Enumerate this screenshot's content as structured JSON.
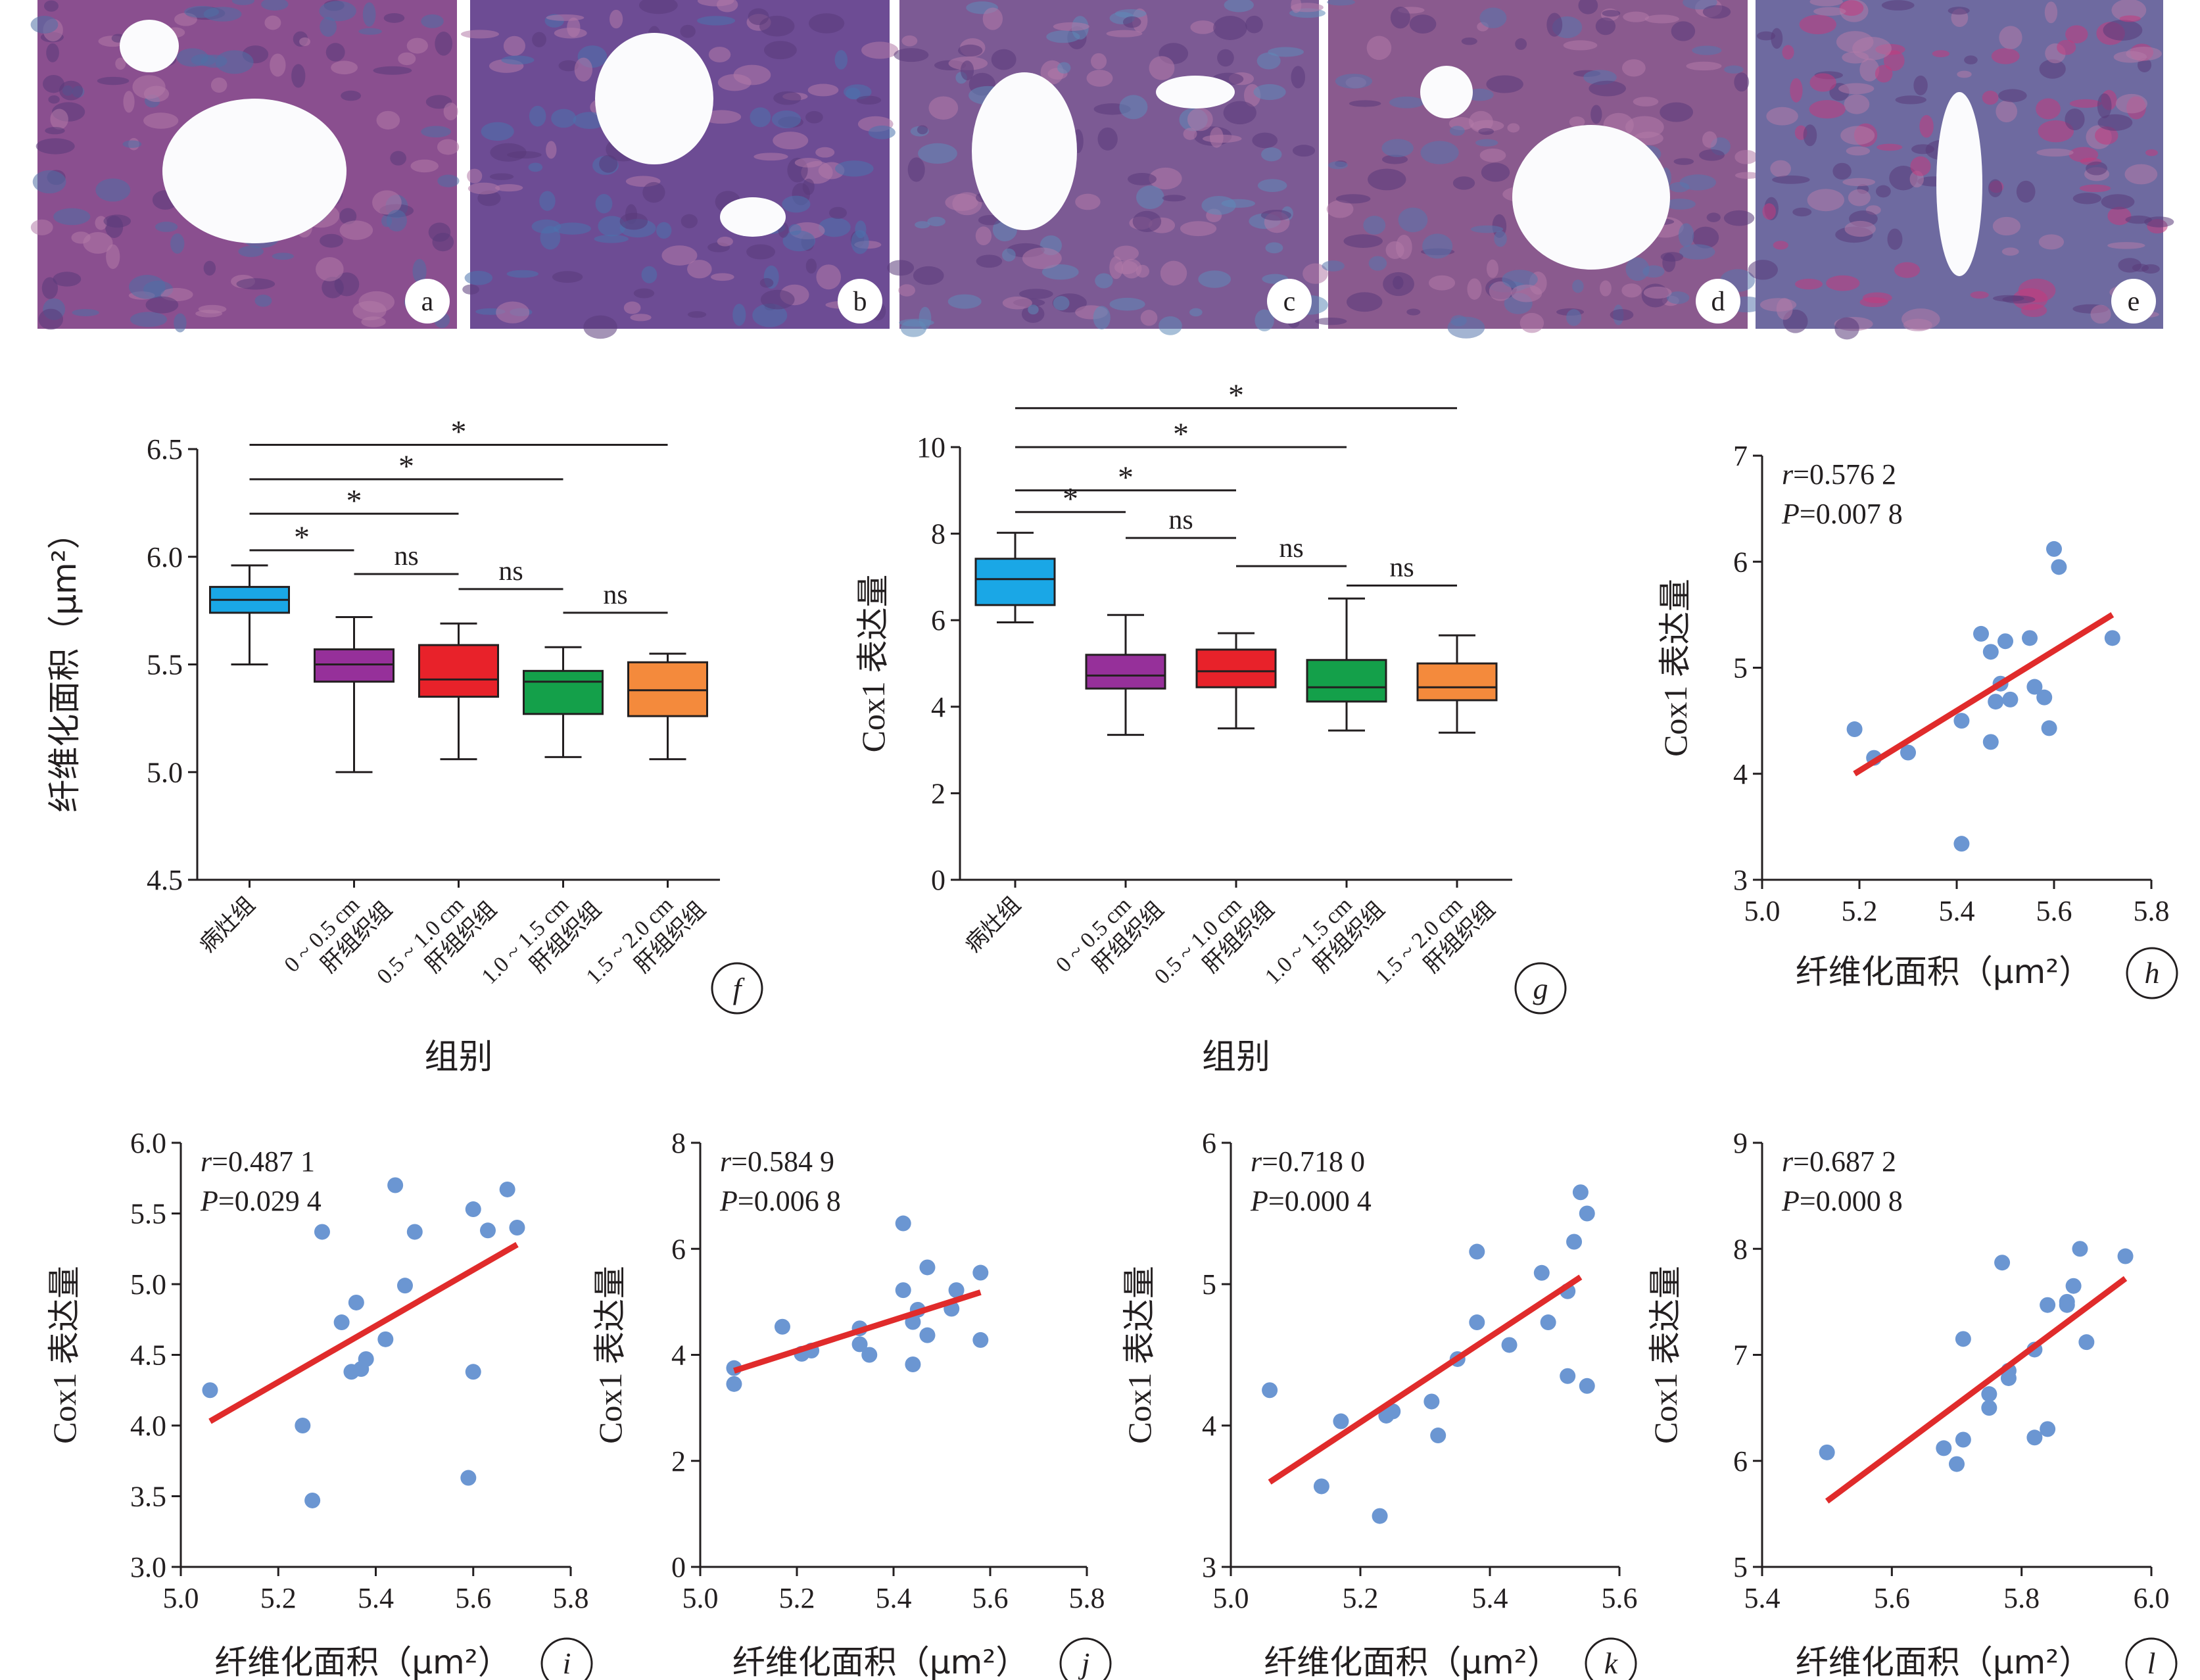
{
  "photos": [
    {
      "label": "a",
      "dominant": "#8a4f8f",
      "accent": "#4f6fa6"
    },
    {
      "label": "b",
      "dominant": "#6d4c94",
      "accent": "#4b73ad"
    },
    {
      "label": "c",
      "dominant": "#7c5a94",
      "accent": "#5e8ab8"
    },
    {
      "label": "d",
      "dominant": "#8a5a8e",
      "accent": "#5877ad"
    },
    {
      "label": "e",
      "dominant": "#6e6aa0",
      "accent": "#c23a7e"
    }
  ],
  "box_colors": [
    "#1aa7e6",
    "#96309a",
    "#e8222a",
    "#14a04a",
    "#f48a3c"
  ],
  "scatter_color": "#6b96d2",
  "fit_color": "#e02b2b",
  "chart_data": [
    {
      "panel": "f",
      "type": "box",
      "ylabel": "纤维化面积（μm²）",
      "xlabel": "组别",
      "ylim": [
        4.5,
        6.5
      ],
      "yticks": [
        "4.5",
        "5.0",
        "5.5",
        "6.0",
        "6.5"
      ],
      "groups": [
        {
          "line1": "病灶组",
          "line2": "",
          "min": 5.5,
          "q1": 5.74,
          "median": 5.8,
          "q3": 5.86,
          "max": 5.96
        },
        {
          "line1": "0 ~ 0.5 cm",
          "line2": "肝组织组",
          "min": 5.0,
          "q1": 5.42,
          "median": 5.5,
          "q3": 5.57,
          "max": 5.72
        },
        {
          "line1": "0.5 ~ 1.0 cm",
          "line2": "肝组织组",
          "min": 5.06,
          "q1": 5.35,
          "median": 5.43,
          "q3": 5.59,
          "max": 5.69
        },
        {
          "line1": "1.0 ~ 1.5 cm",
          "line2": "肝组织组",
          "min": 5.07,
          "q1": 5.27,
          "median": 5.42,
          "q3": 5.47,
          "max": 5.58
        },
        {
          "line1": "1.5 ~ 2.0 cm",
          "line2": "肝组织组",
          "min": 5.06,
          "q1": 5.26,
          "median": 5.38,
          "q3": 5.51,
          "max": 5.55
        }
      ],
      "annotations": [
        {
          "from": 0,
          "to": 1,
          "text": "*",
          "level": 6.03
        },
        {
          "from": 0,
          "to": 2,
          "text": "*",
          "level": 6.2
        },
        {
          "from": 0,
          "to": 3,
          "text": "*",
          "level": 6.36
        },
        {
          "from": 0,
          "to": 4,
          "text": "*",
          "level": 6.52
        },
        {
          "from": 1,
          "to": 2,
          "text": "ns",
          "level": 5.92
        },
        {
          "from": 2,
          "to": 3,
          "text": "ns",
          "level": 5.85
        },
        {
          "from": 3,
          "to": 4,
          "text": "ns",
          "level": 5.74
        }
      ]
    },
    {
      "panel": "g",
      "type": "box",
      "ylabel": "Cox1 表达量",
      "xlabel": "组别",
      "ylim": [
        0,
        10
      ],
      "yticks": [
        "0",
        "2",
        "4",
        "6",
        "8",
        "10"
      ],
      "groups": [
        {
          "line1": "病灶组",
          "line2": "",
          "min": 5.95,
          "q1": 6.35,
          "median": 6.95,
          "q3": 7.42,
          "max": 8.02
        },
        {
          "line1": "0 ~ 0.5 cm",
          "line2": "肝组织组",
          "min": 3.35,
          "q1": 4.42,
          "median": 4.72,
          "q3": 5.2,
          "max": 6.12
        },
        {
          "line1": "0.5 ~ 1.0 cm",
          "line2": "肝组织组",
          "min": 3.5,
          "q1": 4.45,
          "median": 4.82,
          "q3": 5.32,
          "max": 5.7
        },
        {
          "line1": "1.0 ~ 1.5 cm",
          "line2": "肝组织组",
          "min": 3.45,
          "q1": 4.12,
          "median": 4.45,
          "q3": 5.08,
          "max": 6.5
        },
        {
          "line1": "1.5 ~ 2.0 cm",
          "line2": "肝组织组",
          "min": 3.4,
          "q1": 4.15,
          "median": 4.45,
          "q3": 5.0,
          "max": 5.65
        }
      ],
      "annotations": [
        {
          "from": 0,
          "to": 1,
          "text": "*",
          "level": 8.5
        },
        {
          "from": 0,
          "to": 2,
          "text": "*",
          "level": 9.0
        },
        {
          "from": 0,
          "to": 3,
          "text": "*",
          "level": 10.0
        },
        {
          "from": 0,
          "to": 4,
          "text": "*",
          "level": 10.9
        },
        {
          "from": 1,
          "to": 2,
          "text": "ns",
          "level": 7.9
        },
        {
          "from": 2,
          "to": 3,
          "text": "ns",
          "level": 7.25
        },
        {
          "from": 3,
          "to": 4,
          "text": "ns",
          "level": 6.8
        }
      ]
    },
    {
      "panel": "h",
      "type": "scatter",
      "r": "r=0.576 2",
      "p": "P=0.007 8",
      "xlabel": "纤维化面积（μm²）",
      "ylabel": "Cox1 表达量",
      "xlim": [
        5.0,
        5.8
      ],
      "ylim": [
        3,
        7
      ],
      "xticks": [
        "5.0",
        "5.2",
        "5.4",
        "5.6",
        "5.8"
      ],
      "yticks": [
        "3",
        "4",
        "5",
        "6",
        "7"
      ],
      "fit": [
        [
          5.19,
          4.0
        ],
        [
          5.72,
          5.5
        ]
      ],
      "points": [
        [
          5.19,
          4.42
        ],
        [
          5.23,
          4.15
        ],
        [
          5.3,
          4.2
        ],
        [
          5.41,
          3.34
        ],
        [
          5.41,
          4.5
        ],
        [
          5.45,
          5.32
        ],
        [
          5.47,
          5.15
        ],
        [
          5.47,
          4.3
        ],
        [
          5.48,
          4.68
        ],
        [
          5.49,
          4.85
        ],
        [
          5.5,
          5.25
        ],
        [
          5.51,
          4.7
        ],
        [
          5.55,
          5.28
        ],
        [
          5.56,
          4.82
        ],
        [
          5.58,
          4.72
        ],
        [
          5.59,
          4.43
        ],
        [
          5.6,
          6.12
        ],
        [
          5.61,
          5.95
        ],
        [
          5.72,
          5.28
        ]
      ]
    },
    {
      "panel": "i",
      "type": "scatter",
      "r": "r=0.487 1",
      "p": "P=0.029 4",
      "xlabel": "纤维化面积（μm²）",
      "ylabel": "Cox1 表达量",
      "xlim": [
        5.0,
        5.8
      ],
      "ylim": [
        3.0,
        6.0
      ],
      "xticks": [
        "5.0",
        "5.2",
        "5.4",
        "5.6",
        "5.8"
      ],
      "yticks": [
        "3.0",
        "3.5",
        "4.0",
        "4.5",
        "5.0",
        "5.5",
        "6.0"
      ],
      "fit": [
        [
          5.06,
          4.03
        ],
        [
          5.69,
          5.28
        ]
      ],
      "points": [
        [
          5.06,
          4.25
        ],
        [
          5.25,
          4.0
        ],
        [
          5.27,
          3.47
        ],
        [
          5.29,
          5.37
        ],
        [
          5.33,
          4.73
        ],
        [
          5.35,
          4.38
        ],
        [
          5.36,
          4.87
        ],
        [
          5.37,
          4.4
        ],
        [
          5.38,
          4.47
        ],
        [
          5.42,
          4.61
        ],
        [
          5.44,
          5.7
        ],
        [
          5.46,
          4.99
        ],
        [
          5.48,
          5.37
        ],
        [
          5.59,
          3.63
        ],
        [
          5.6,
          5.53
        ],
        [
          5.6,
          4.38
        ],
        [
          5.63,
          5.38
        ],
        [
          5.67,
          5.67
        ],
        [
          5.69,
          5.4
        ]
      ]
    },
    {
      "panel": "j",
      "type": "scatter",
      "r": "r=0.584 9",
      "p": "P=0.006 8",
      "xlabel": "纤维化面积（μm²）",
      "ylabel": "Cox1 表达量",
      "xlim": [
        5.0,
        5.8
      ],
      "ylim": [
        0,
        8
      ],
      "xticks": [
        "5.0",
        "5.2",
        "5.4",
        "5.6",
        "5.8"
      ],
      "yticks": [
        "0",
        "2",
        "4",
        "6",
        "8"
      ],
      "fit": [
        [
          5.07,
          3.7
        ],
        [
          5.58,
          5.18
        ]
      ],
      "points": [
        [
          5.07,
          3.75
        ],
        [
          5.07,
          3.45
        ],
        [
          5.17,
          4.53
        ],
        [
          5.21,
          4.02
        ],
        [
          5.23,
          4.08
        ],
        [
          5.33,
          4.5
        ],
        [
          5.33,
          4.2
        ],
        [
          5.35,
          4.0
        ],
        [
          5.42,
          6.48
        ],
        [
          5.42,
          5.22
        ],
        [
          5.44,
          3.82
        ],
        [
          5.44,
          4.62
        ],
        [
          5.45,
          4.85
        ],
        [
          5.47,
          5.65
        ],
        [
          5.47,
          4.37
        ],
        [
          5.52,
          4.87
        ],
        [
          5.53,
          5.22
        ],
        [
          5.58,
          5.55
        ],
        [
          5.58,
          4.28
        ]
      ]
    },
    {
      "panel": "k",
      "type": "scatter",
      "r": "r=0.718 0",
      "p": "P=0.000 4",
      "xlabel": "纤维化面积（μm²）",
      "ylabel": "Cox1 表达量",
      "xlim": [
        5.0,
        5.6
      ],
      "ylim": [
        3,
        6
      ],
      "xticks": [
        "5.0",
        "5.2",
        "5.4",
        "5.6"
      ],
      "yticks": [
        "3",
        "4",
        "5",
        "6"
      ],
      "fit": [
        [
          5.06,
          3.6
        ],
        [
          5.54,
          5.05
        ]
      ],
      "points": [
        [
          5.06,
          4.25
        ],
        [
          5.14,
          3.57
        ],
        [
          5.17,
          4.03
        ],
        [
          5.23,
          3.36
        ],
        [
          5.24,
          4.07
        ],
        [
          5.25,
          4.1
        ],
        [
          5.31,
          4.17
        ],
        [
          5.32,
          3.93
        ],
        [
          5.35,
          4.47
        ],
        [
          5.38,
          5.23
        ],
        [
          5.38,
          4.73
        ],
        [
          5.43,
          4.57
        ],
        [
          5.48,
          5.08
        ],
        [
          5.49,
          4.73
        ],
        [
          5.52,
          4.95
        ],
        [
          5.52,
          4.35
        ],
        [
          5.53,
          5.3
        ],
        [
          5.54,
          5.65
        ],
        [
          5.55,
          5.5
        ],
        [
          5.55,
          4.28
        ]
      ]
    },
    {
      "panel": "l",
      "type": "scatter",
      "r": "r=0.687 2",
      "p": "P=0.000 8",
      "xlabel": "纤维化面积（μm²）",
      "ylabel": "Cox1 表达量",
      "xlim": [
        5.4,
        6.0
      ],
      "ylim": [
        5,
        9
      ],
      "xticks": [
        "5.4",
        "5.6",
        "5.8",
        "6.0"
      ],
      "yticks": [
        "5",
        "6",
        "7",
        "8",
        "9"
      ],
      "fit": [
        [
          5.5,
          5.62
        ],
        [
          5.96,
          7.72
        ]
      ],
      "points": [
        [
          5.5,
          6.08
        ],
        [
          5.68,
          6.12
        ],
        [
          5.7,
          5.97
        ],
        [
          5.71,
          6.2
        ],
        [
          5.71,
          7.15
        ],
        [
          5.75,
          6.5
        ],
        [
          5.75,
          6.63
        ],
        [
          5.77,
          7.87
        ],
        [
          5.78,
          6.78
        ],
        [
          5.78,
          6.85
        ],
        [
          5.82,
          6.22
        ],
        [
          5.82,
          7.05
        ],
        [
          5.84,
          6.3
        ],
        [
          5.84,
          7.47
        ],
        [
          5.87,
          7.47
        ],
        [
          5.87,
          7.5
        ],
        [
          5.88,
          7.65
        ],
        [
          5.89,
          8.0
        ],
        [
          5.9,
          7.12
        ],
        [
          5.96,
          7.93
        ]
      ]
    }
  ]
}
